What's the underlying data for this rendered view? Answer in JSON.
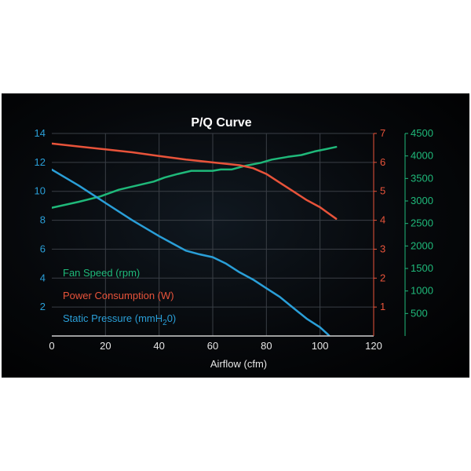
{
  "chart_data": {
    "type": "line",
    "title": "P/Q Curve",
    "xlabel": "Airflow (cfm)",
    "xlim": [
      0,
      120
    ],
    "x_ticks": [
      "0",
      "20",
      "40",
      "60",
      "80",
      "100",
      "120"
    ],
    "grid": true,
    "legend_position": "bottom-left",
    "axes": {
      "left": {
        "range": [
          0,
          14
        ],
        "ticks": [
          "2",
          "4",
          "6",
          "8",
          "10",
          "12",
          "14"
        ],
        "color": "#2a9fd8"
      },
      "right1": {
        "range": [
          0,
          7
        ],
        "ticks": [
          "1",
          "2",
          "3",
          "4",
          "5",
          "6",
          "7"
        ],
        "color": "#e8533a"
      },
      "right2": {
        "range": [
          0,
          4500
        ],
        "ticks": [
          "500",
          "1000",
          "1500",
          "2000",
          "2500",
          "3000",
          "3500",
          "4000",
          "4500"
        ],
        "color": "#1fb97a"
      }
    },
    "series": [
      {
        "name": "Fan Speed (rpm)",
        "axis": "right2",
        "color": "#1fb97a",
        "x": [
          0,
          10,
          18,
          25,
          30,
          38,
          42,
          47,
          52,
          60,
          63,
          67,
          72,
          78,
          82,
          88,
          93,
          98,
          102,
          106
        ],
        "y": [
          2850,
          2980,
          3100,
          3250,
          3320,
          3430,
          3520,
          3600,
          3670,
          3670,
          3700,
          3700,
          3780,
          3850,
          3920,
          3980,
          4020,
          4100,
          4150,
          4200
        ]
      },
      {
        "name": "Power Consumption (W)",
        "axis": "right1",
        "color": "#e8533a",
        "x": [
          0,
          10,
          20,
          30,
          40,
          50,
          60,
          70,
          75,
          80,
          85,
          90,
          95,
          100,
          103,
          106
        ],
        "y": [
          6.65,
          6.55,
          6.45,
          6.35,
          6.22,
          6.1,
          6.0,
          5.9,
          5.8,
          5.6,
          5.3,
          5.0,
          4.7,
          4.45,
          4.25,
          4.05
        ]
      },
      {
        "name": "Static Pressure (mmH2O)",
        "axis": "left",
        "color": "#2a9fd8",
        "x": [
          0,
          10,
          20,
          30,
          40,
          45,
          50,
          55,
          60,
          65,
          70,
          75,
          80,
          85,
          90,
          95,
          100,
          103,
          106
        ],
        "y": [
          11.5,
          10.4,
          9.2,
          8.0,
          6.9,
          6.4,
          5.9,
          5.65,
          5.45,
          5.0,
          4.4,
          3.9,
          3.3,
          2.7,
          1.95,
          1.2,
          0.6,
          0.1,
          -0.5
        ]
      }
    ]
  },
  "legend": {
    "items": [
      {
        "label": "Fan Speed (rpm)",
        "color": "#1fb97a"
      },
      {
        "label": "Power Consumption (W)",
        "color": "#e8533a"
      },
      {
        "label": "Static Pressure (mmH",
        "sub": "2",
        "tail": "0)",
        "color": "#2a9fd8"
      }
    ]
  }
}
